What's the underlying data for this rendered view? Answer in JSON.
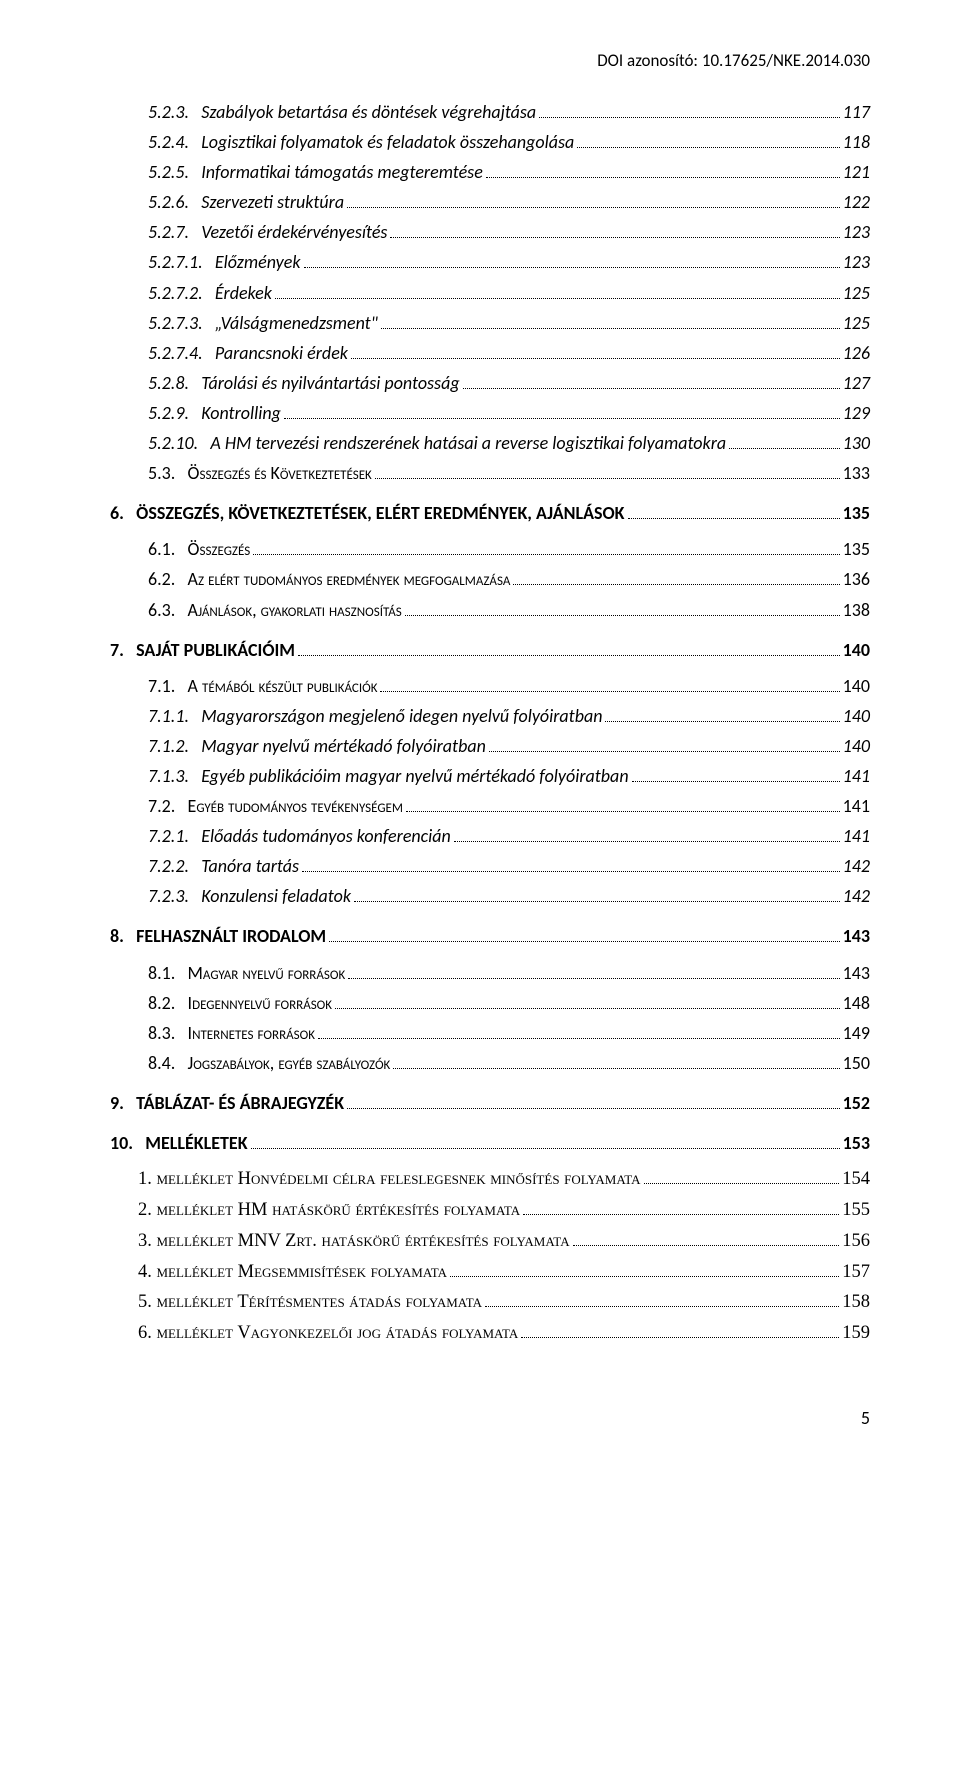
{
  "doi": "DOI azonosító: 10.17625/NKE.2014.030",
  "page_number": "5",
  "entries": [
    {
      "cls": "lvl3",
      "num": "5.2.3.",
      "label": "Szabályok betartása és döntések végrehajtása",
      "page": "117"
    },
    {
      "cls": "lvl3",
      "num": "5.2.4.",
      "label": "Logisztikai folyamatok és feladatok összehangolása",
      "page": "118"
    },
    {
      "cls": "lvl3",
      "num": "5.2.5.",
      "label": "Informatikai támogatás megteremtése",
      "page": "121"
    },
    {
      "cls": "lvl3",
      "num": "5.2.6.",
      "label": "Szervezeti struktúra",
      "page": "122"
    },
    {
      "cls": "lvl3",
      "num": "5.2.7.",
      "label": "Vezetői érdekérvényesítés",
      "page": "123"
    },
    {
      "cls": "lvl3",
      "num": "5.2.7.1.",
      "label": "Előzmények",
      "page": "123"
    },
    {
      "cls": "lvl3",
      "num": "5.2.7.2.",
      "label": "Érdekek",
      "page": "125"
    },
    {
      "cls": "lvl3",
      "num": "5.2.7.3.",
      "label": "„Válságmenedzsment\"",
      "page": "125"
    },
    {
      "cls": "lvl3",
      "num": "5.2.7.4.",
      "label": "Parancsnoki érdek",
      "page": "126"
    },
    {
      "cls": "lvl3",
      "num": "5.2.8.",
      "label": "Tárolási és nyilvántartási pontosság",
      "page": "127"
    },
    {
      "cls": "lvl3",
      "num": "5.2.9.",
      "label": "Kontrolling",
      "page": "129"
    },
    {
      "cls": "lvl3",
      "num": "5.2.10.",
      "label": "A HM tervezési rendszerének hatásai a reverse logisztikai folyamatokra",
      "page": "130"
    },
    {
      "cls": "lvl2 sc",
      "num": "5.3.",
      "label": "Összegzés és Következtetések",
      "page": "133"
    },
    {
      "cls": "lvl1",
      "num": "6.",
      "label": "ÖSSZEGZÉS, KÖVETKEZTETÉSEK, ELÉRT EREDMÉNYEK, AJÁNLÁSOK",
      "page": "135"
    },
    {
      "cls": "lvl2 sc",
      "num": "6.1.",
      "label": "Összegzés",
      "page": "135"
    },
    {
      "cls": "lvl2 sc",
      "num": "6.2.",
      "label": "Az elért tudományos eredmények megfogalmazása",
      "page": "136"
    },
    {
      "cls": "lvl2 sc",
      "num": "6.3.",
      "label": "Ajánlások, gyakorlati hasznosítás",
      "page": "138"
    },
    {
      "cls": "lvl1",
      "num": "7.",
      "label": "SAJÁT PUBLIKÁCIÓIM",
      "page": "140"
    },
    {
      "cls": "lvl2 sc",
      "num": "7.1.",
      "label": "A témából készült publikációk",
      "page": "140"
    },
    {
      "cls": "lvl3",
      "num": "7.1.1.",
      "label": "Magyarországon megjelenő idegen nyelvű folyóiratban",
      "page": "140"
    },
    {
      "cls": "lvl3",
      "num": "7.1.2.",
      "label": "Magyar nyelvű mértékadó folyóiratban",
      "page": "140"
    },
    {
      "cls": "lvl3",
      "num": "7.1.3.",
      "label": "Egyéb publikációim magyar nyelvű mértékadó folyóiratban",
      "page": "141"
    },
    {
      "cls": "lvl2 sc",
      "num": "7.2.",
      "label": "Egyéb tudományos tevékenységem",
      "page": "141"
    },
    {
      "cls": "lvl3",
      "num": "7.2.1.",
      "label": "Előadás tudományos konferencián",
      "page": "141"
    },
    {
      "cls": "lvl3",
      "num": "7.2.2.",
      "label": "Tanóra tartás",
      "page": "142"
    },
    {
      "cls": "lvl3",
      "num": "7.2.3.",
      "label": "Konzulensi feladatok",
      "page": "142"
    },
    {
      "cls": "lvl1",
      "num": "8.",
      "label": "FELHASZNÁLT IRODALOM",
      "page": "143"
    },
    {
      "cls": "lvl2 sc",
      "num": "8.1.",
      "label": "Magyar nyelvű források",
      "page": "143"
    },
    {
      "cls": "lvl2 sc",
      "num": "8.2.",
      "label": "Idegennyelvű források",
      "page": "148"
    },
    {
      "cls": "lvl2 sc",
      "num": "8.3.",
      "label": "Internetes források",
      "page": "149"
    },
    {
      "cls": "lvl2 sc",
      "num": "8.4.",
      "label": "Jogszabályok, egyéb szabályozók",
      "page": "150"
    },
    {
      "cls": "lvl1",
      "num": "9.",
      "label": "TÁBLÁZAT- ÉS ÁBRAJEGYZÉK",
      "page": "152"
    },
    {
      "cls": "lvl1",
      "num": "10.",
      "label": "MELLÉKLETEK",
      "page": "153"
    },
    {
      "cls": "mell sc",
      "num": "",
      "label": "1. melléklet Honvédelmi célra feleslegesnek minősítés folyamata",
      "page": "154"
    },
    {
      "cls": "mell sc",
      "num": "",
      "label": "2. melléklet HM hatáskörű értékesítés folyamata",
      "page": "155"
    },
    {
      "cls": "mell sc",
      "num": "",
      "label": "3. melléklet MNV Zrt. hatáskörű értékesítés folyamata",
      "page": "156"
    },
    {
      "cls": "mell sc",
      "num": "",
      "label": "4. melléklet Megsemmisítések folyamata",
      "page": "157"
    },
    {
      "cls": "mell sc",
      "num": "",
      "label": "5. melléklet Térítésmentes átadás folyamata",
      "page": "158"
    },
    {
      "cls": "mell sc",
      "num": "",
      "label": "6. melléklet Vagyonkezelői jog átadás folyamata",
      "page": "159"
    }
  ]
}
